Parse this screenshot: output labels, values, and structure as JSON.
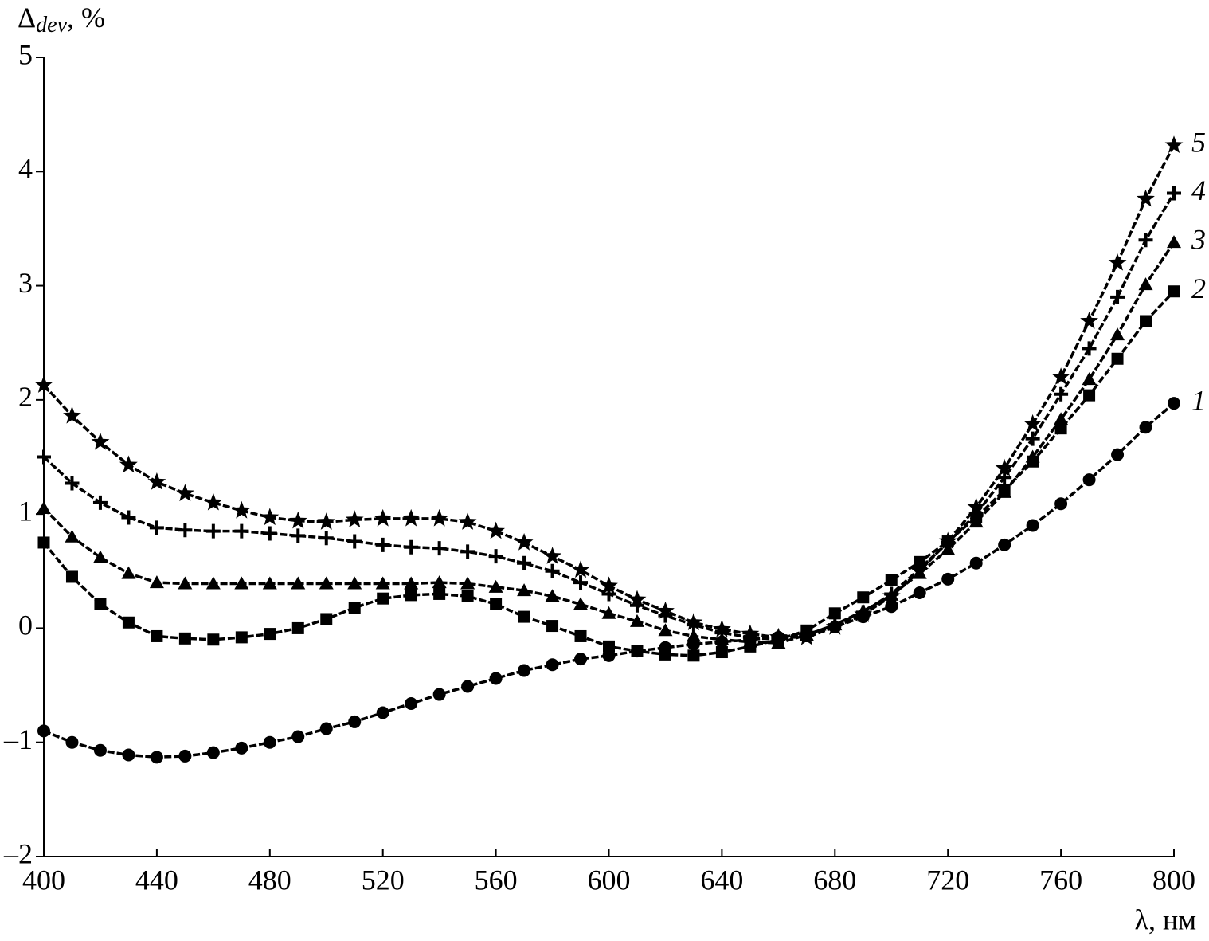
{
  "chart_data": {
    "type": "line",
    "ylabel": {
      "main": "Δ",
      "sub": "dev",
      "rest": ", %"
    },
    "xlabel": "λ, нм",
    "x": [
      400,
      410,
      420,
      430,
      440,
      450,
      460,
      470,
      480,
      490,
      500,
      510,
      520,
      530,
      540,
      550,
      560,
      570,
      580,
      590,
      600,
      610,
      620,
      630,
      640,
      650,
      660,
      670,
      680,
      690,
      700,
      710,
      720,
      730,
      740,
      750,
      760,
      770,
      780,
      790,
      800
    ],
    "series": [
      {
        "name": "1",
        "color": "#000000",
        "marker": "circle",
        "values": [
          -0.9,
          -1.0,
          -1.07,
          -1.11,
          -1.13,
          -1.12,
          -1.09,
          -1.05,
          -1.0,
          -0.95,
          -0.88,
          -0.82,
          -0.74,
          -0.66,
          -0.58,
          -0.51,
          -0.44,
          -0.37,
          -0.32,
          -0.27,
          -0.24,
          -0.2,
          -0.17,
          -0.14,
          -0.12,
          -0.1,
          -0.08,
          -0.05,
          0.01,
          0.1,
          0.19,
          0.31,
          0.43,
          0.57,
          0.73,
          0.9,
          1.09,
          1.3,
          1.52,
          1.76,
          1.97
        ]
      },
      {
        "name": "2",
        "color": "#000000",
        "marker": "square",
        "values": [
          0.75,
          0.45,
          0.21,
          0.05,
          -0.07,
          -0.09,
          -0.1,
          -0.08,
          -0.05,
          0.0,
          0.08,
          0.18,
          0.26,
          0.29,
          0.3,
          0.28,
          0.21,
          0.1,
          0.02,
          -0.07,
          -0.16,
          -0.2,
          -0.23,
          -0.24,
          -0.21,
          -0.16,
          -0.1,
          -0.02,
          0.13,
          0.27,
          0.42,
          0.58,
          0.76,
          0.97,
          1.21,
          1.46,
          1.75,
          2.04,
          2.36,
          2.69,
          2.95
        ]
      },
      {
        "name": "3",
        "color": "#000000",
        "marker": "triangle",
        "values": [
          1.05,
          0.8,
          0.62,
          0.48,
          0.4,
          0.39,
          0.39,
          0.39,
          0.39,
          0.39,
          0.39,
          0.39,
          0.39,
          0.39,
          0.4,
          0.39,
          0.36,
          0.33,
          0.28,
          0.21,
          0.13,
          0.06,
          -0.02,
          -0.07,
          -0.1,
          -0.12,
          -0.13,
          -0.06,
          0.03,
          0.15,
          0.29,
          0.48,
          0.69,
          0.93,
          1.19,
          1.5,
          1.83,
          2.18,
          2.57,
          3.01,
          3.38
        ]
      },
      {
        "name": "4",
        "color": "#000000",
        "marker": "plus",
        "values": [
          1.5,
          1.27,
          1.1,
          0.97,
          0.88,
          0.86,
          0.85,
          0.85,
          0.83,
          0.81,
          0.79,
          0.76,
          0.73,
          0.71,
          0.7,
          0.67,
          0.63,
          0.57,
          0.5,
          0.4,
          0.3,
          0.2,
          0.11,
          0.03,
          -0.04,
          -0.08,
          -0.1,
          -0.06,
          0.03,
          0.14,
          0.3,
          0.52,
          0.75,
          1.0,
          1.32,
          1.66,
          2.05,
          2.45,
          2.9,
          3.4,
          3.81
        ]
      },
      {
        "name": "5",
        "color": "#000000",
        "marker": "star",
        "values": [
          2.13,
          1.86,
          1.63,
          1.43,
          1.28,
          1.18,
          1.1,
          1.03,
          0.97,
          0.94,
          0.93,
          0.95,
          0.96,
          0.96,
          0.96,
          0.93,
          0.85,
          0.75,
          0.63,
          0.51,
          0.37,
          0.25,
          0.15,
          0.05,
          -0.01,
          -0.05,
          -0.08,
          -0.08,
          0.01,
          0.12,
          0.28,
          0.5,
          0.76,
          1.06,
          1.4,
          1.79,
          2.2,
          2.69,
          3.2,
          3.76,
          4.23
        ]
      }
    ],
    "xlim": [
      400,
      800
    ],
    "xticks": [
      400,
      440,
      480,
      520,
      560,
      600,
      640,
      680,
      720,
      760,
      800
    ],
    "ylim": [
      -2,
      5
    ],
    "yticks": [
      {
        "value": -2,
        "label": "–2"
      },
      {
        "value": -1,
        "label": "–1"
      },
      0,
      1,
      2,
      3,
      4,
      5
    ],
    "grid": false
  }
}
